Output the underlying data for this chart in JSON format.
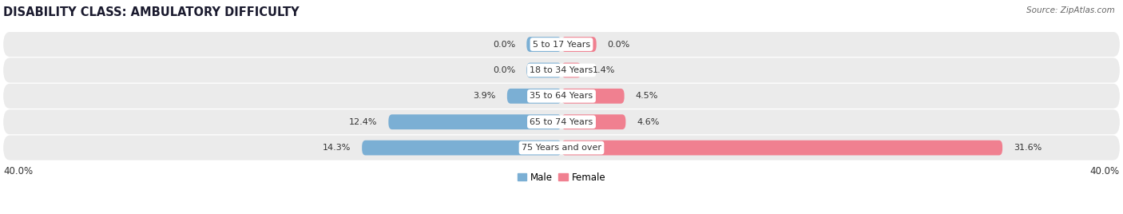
{
  "title": "DISABILITY CLASS: AMBULATORY DIFFICULTY",
  "source": "Source: ZipAtlas.com",
  "categories": [
    "5 to 17 Years",
    "18 to 34 Years",
    "35 to 64 Years",
    "65 to 74 Years",
    "75 Years and over"
  ],
  "male_values": [
    0.0,
    0.0,
    3.9,
    12.4,
    14.3
  ],
  "female_values": [
    0.0,
    1.4,
    4.5,
    4.6,
    31.6
  ],
  "max_val": 40.0,
  "male_color": "#7bafd4",
  "female_color": "#f08090",
  "row_bg_color": "#ebebeb",
  "label_color": "#333333",
  "title_fontsize": 10.5,
  "label_fontsize": 8.0,
  "value_fontsize": 8.0,
  "axis_label_fontsize": 8.5,
  "legend_fontsize": 8.5,
  "bar_height": 0.58,
  "stub_val": 2.5,
  "x_min": -40.0,
  "x_max": 40.0
}
